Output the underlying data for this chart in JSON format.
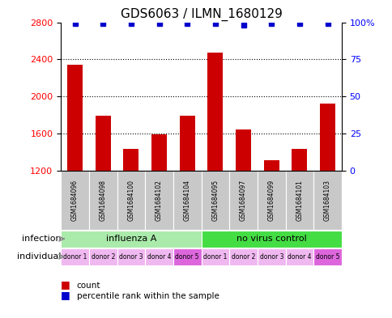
{
  "title": "GDS6063 / ILMN_1680129",
  "samples": [
    "GSM1684096",
    "GSM1684098",
    "GSM1684100",
    "GSM1684102",
    "GSM1684104",
    "GSM1684095",
    "GSM1684097",
    "GSM1684099",
    "GSM1684101",
    "GSM1684103"
  ],
  "counts": [
    2340,
    1790,
    1430,
    1590,
    1790,
    2470,
    1640,
    1310,
    1430,
    1920
  ],
  "percentiles": [
    99,
    99,
    99,
    99,
    99,
    99,
    98,
    99,
    99,
    99
  ],
  "ylim_left": [
    1200,
    2800
  ],
  "ylim_right": [
    0,
    100
  ],
  "yticks_left": [
    1200,
    1600,
    2000,
    2400,
    2800
  ],
  "yticks_right": [
    0,
    25,
    50,
    75,
    100
  ],
  "infection_groups": [
    {
      "label": "influenza A",
      "start": 0,
      "end": 5,
      "color": "#aaeaaa"
    },
    {
      "label": "no virus control",
      "start": 5,
      "end": 10,
      "color": "#44dd44"
    }
  ],
  "individual_labels": [
    "donor 1",
    "donor 2",
    "donor 3",
    "donor 4",
    "donor 5",
    "donor 1",
    "donor 2",
    "donor 3",
    "donor 4",
    "donor 5"
  ],
  "individual_colors": [
    "#f0b8f0",
    "#f0b8f0",
    "#f0b8f0",
    "#f0b8f0",
    "#dd66dd",
    "#f0b8f0",
    "#f0b8f0",
    "#f0b8f0",
    "#f0b8f0",
    "#dd66dd"
  ],
  "bar_color": "#cc0000",
  "dot_color": "#0000cc",
  "bar_width": 0.55,
  "background_color": "#ffffff",
  "sample_bg_color": "#c8c8c8",
  "infection_label": "infection",
  "individual_label": "individual"
}
